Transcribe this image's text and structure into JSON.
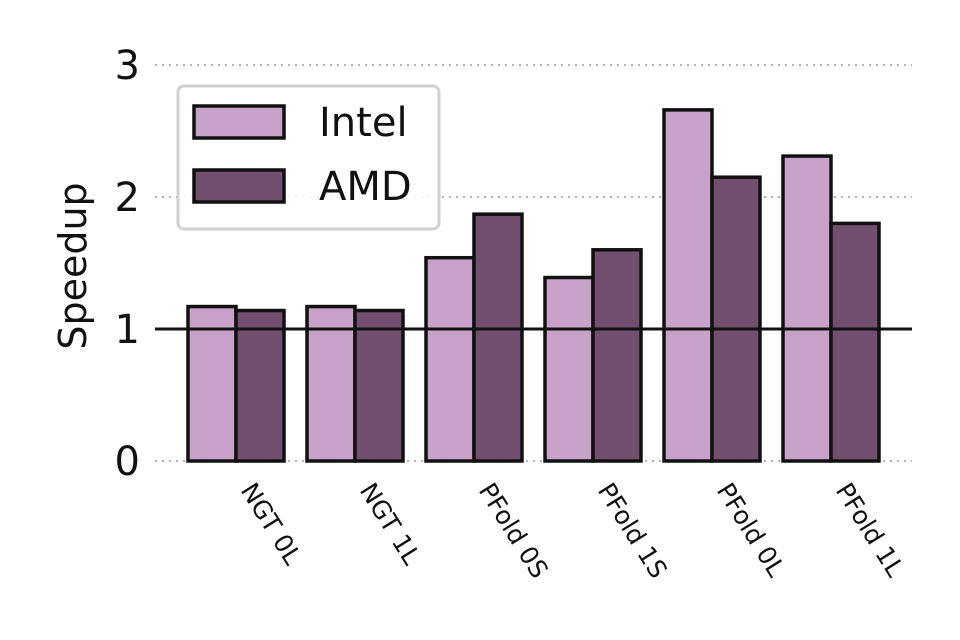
{
  "chart_data": {
    "type": "bar",
    "title": "",
    "xlabel": "",
    "ylabel": "Speedup",
    "ylim": [
      0,
      3
    ],
    "yticks": [
      0,
      1,
      2,
      3
    ],
    "categories": [
      "NGT 0L",
      "NGT 1L",
      "PFold 0S",
      "PFold 1S",
      "PFold 0L",
      "PFold 1L"
    ],
    "series": [
      {
        "name": "Intel",
        "values": [
          1.17,
          1.17,
          1.54,
          1.39,
          2.66,
          2.31
        ],
        "color": "#c8a2c8"
      },
      {
        "name": "AMD",
        "values": [
          1.14,
          1.14,
          1.87,
          1.6,
          2.15,
          1.8
        ],
        "color": "#734f6f"
      }
    ],
    "reference_line": 1,
    "grid": "horizontal dotted",
    "legend_position": "top-left"
  }
}
